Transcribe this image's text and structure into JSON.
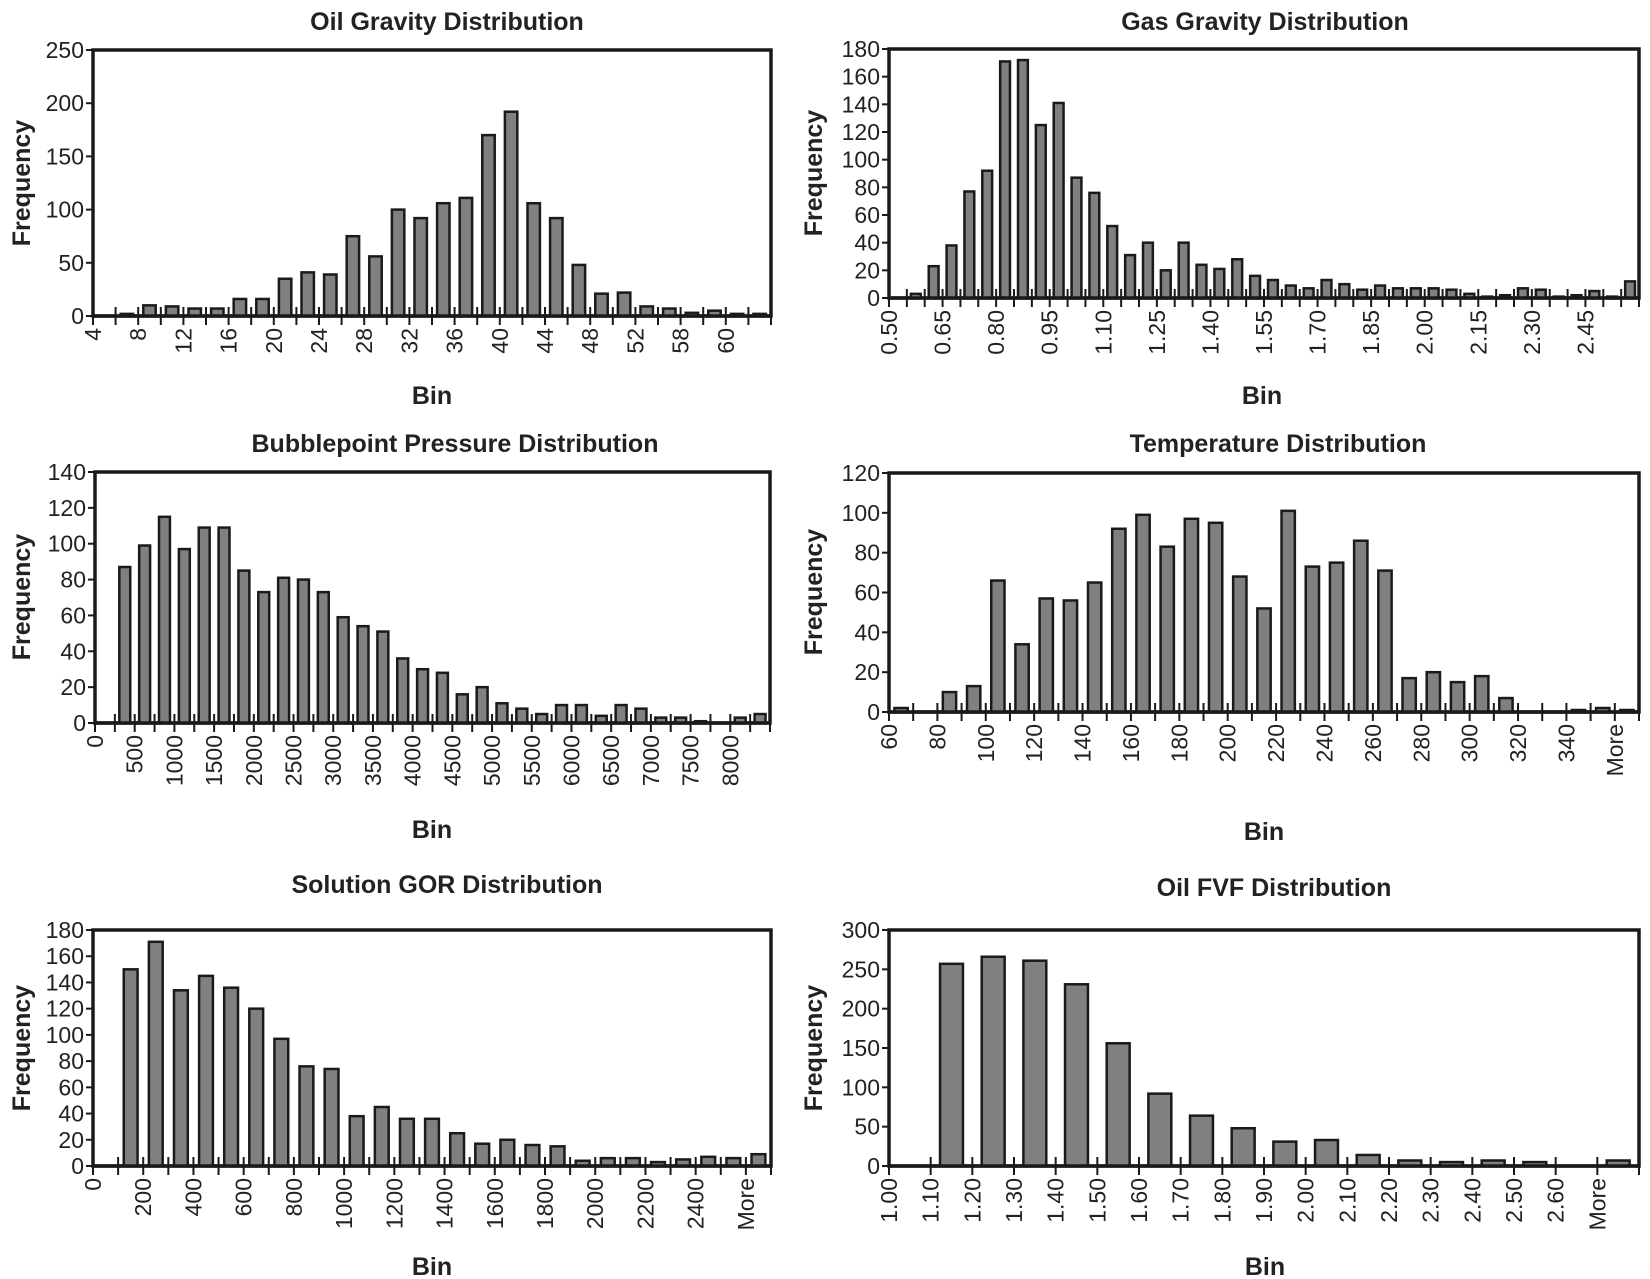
{
  "colors": {
    "bar_fill": "#808080",
    "bar_stroke": "#1a1a1a",
    "axis": "#1a1a1a"
  },
  "chart_data": [
    {
      "type": "bar",
      "title": "Oil Gravity Distribution",
      "xlabel": "Bin",
      "ylabel": "Frequency",
      "ylim": [
        0,
        250
      ],
      "ytick_step": 50,
      "xtick_labels": [
        "4",
        "8",
        "12",
        "16",
        "20",
        "24",
        "28",
        "32",
        "36",
        "40",
        "44",
        "48",
        "52",
        "58",
        "60"
      ],
      "xtick_label_every": 2,
      "values": [
        0,
        2,
        10,
        9,
        7,
        7,
        16,
        16,
        35,
        41,
        39,
        75,
        56,
        100,
        92,
        106,
        111,
        170,
        192,
        106,
        92,
        48,
        21,
        22,
        9,
        7,
        3,
        5,
        2,
        2
      ],
      "grid": false
    },
    {
      "type": "bar",
      "title": "Gas Gravity Distribution",
      "xlabel": "Bin",
      "ylabel": "Frequency",
      "ylim": [
        0,
        180
      ],
      "ytick_step": 20,
      "xtick_labels": [
        "0.50",
        "0.65",
        "0.80",
        "0.95",
        "1.10",
        "1.25",
        "1.40",
        "1.55",
        "1.70",
        "1.85",
        "2.00",
        "2.15",
        "2.30",
        "2.45"
      ],
      "xtick_label_every": 3,
      "values": [
        0,
        3,
        23,
        38,
        77,
        92,
        171,
        172,
        125,
        141,
        87,
        76,
        52,
        31,
        40,
        20,
        40,
        24,
        21,
        28,
        16,
        13,
        9,
        7,
        13,
        10,
        6,
        9,
        7,
        7,
        7,
        6,
        3,
        1,
        2,
        7,
        6,
        1,
        2,
        5,
        1,
        12
      ],
      "grid": false
    },
    {
      "type": "bar",
      "title": "Bubblepoint Pressure Distribution",
      "xlabel": "Bin",
      "ylabel": "Frequency",
      "ylim": [
        0,
        140
      ],
      "ytick_step": 20,
      "xtick_labels": [
        "0",
        "500",
        "1000",
        "1500",
        "2000",
        "2500",
        "3000",
        "3500",
        "4000",
        "4500",
        "5000",
        "5500",
        "6000",
        "6500",
        "7000",
        "7500",
        "8000"
      ],
      "xtick_label_every": 2,
      "values": [
        0,
        87,
        99,
        115,
        97,
        109,
        109,
        85,
        73,
        81,
        80,
        73,
        59,
        54,
        51,
        36,
        30,
        28,
        16,
        20,
        11,
        8,
        5,
        10,
        10,
        4,
        10,
        8,
        3,
        3,
        1,
        0,
        3,
        5
      ],
      "grid": false
    },
    {
      "type": "bar",
      "title": "Temperature Distribution",
      "xlabel": "Bin",
      "ylabel": "Frequency",
      "ylim": [
        0,
        120
      ],
      "ytick_step": 20,
      "xtick_labels": [
        "60",
        "80",
        "100",
        "120",
        "140",
        "160",
        "180",
        "200",
        "220",
        "240",
        "260",
        "280",
        "300",
        "320",
        "340",
        "More"
      ],
      "xtick_label_every": 2,
      "values": [
        2,
        0,
        10,
        13,
        66,
        34,
        57,
        56,
        65,
        92,
        99,
        83,
        97,
        95,
        68,
        52,
        101,
        73,
        75,
        86,
        71,
        17,
        20,
        15,
        18,
        7,
        0,
        0,
        1,
        2,
        1
      ],
      "grid": false
    },
    {
      "type": "bar",
      "title": "Solution GOR Distribution",
      "xlabel": "Bin",
      "ylabel": "Frequency",
      "ylim": [
        0,
        180
      ],
      "ytick_step": 20,
      "xtick_labels": [
        "0",
        "200",
        "400",
        "600",
        "800",
        "1000",
        "1200",
        "1400",
        "1600",
        "1800",
        "2000",
        "2200",
        "2400",
        "More"
      ],
      "xtick_label_every": 2,
      "values": [
        0,
        150,
        171,
        134,
        145,
        136,
        120,
        97,
        76,
        74,
        38,
        45,
        36,
        36,
        25,
        17,
        20,
        16,
        15,
        4,
        6,
        6,
        3,
        5,
        7,
        6,
        9
      ],
      "grid": false
    },
    {
      "type": "bar",
      "title": "Oil FVF Distribution",
      "xlabel": "Bin",
      "ylabel": "Frequency",
      "ylim": [
        0,
        300
      ],
      "ytick_step": 50,
      "xtick_labels": [
        "1.00",
        "1.10",
        "1.20",
        "1.30",
        "1.40",
        "1.50",
        "1.60",
        "1.70",
        "1.80",
        "1.90",
        "2.00",
        "2.10",
        "2.20",
        "2.30",
        "2.40",
        "2.50",
        "2.60",
        "More"
      ],
      "xtick_label_every": 1,
      "values": [
        0,
        257,
        266,
        261,
        231,
        156,
        92,
        64,
        48,
        31,
        33,
        14,
        7,
        5,
        7,
        5,
        0,
        7
      ],
      "grid": false
    }
  ]
}
